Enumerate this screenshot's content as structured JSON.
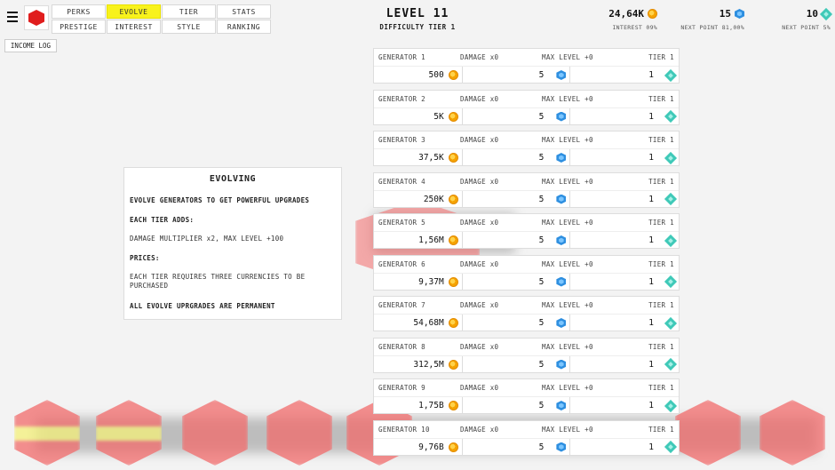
{
  "menu": {
    "icon": "hamburger-icon"
  },
  "logo": {
    "icon": "red-cube-icon",
    "color": "#e01d1d"
  },
  "tabs": [
    {
      "label": "PERKS",
      "active": false
    },
    {
      "label": "EVOLVE",
      "active": true
    },
    {
      "label": "TIER",
      "active": false
    },
    {
      "label": "STATS",
      "active": false
    },
    {
      "label": "PRESTIGE",
      "active": false
    },
    {
      "label": "INTEREST",
      "active": false
    },
    {
      "label": "STYLE",
      "active": false
    },
    {
      "label": "RANKING",
      "active": false
    }
  ],
  "income_log_label": "INCOME LOG",
  "header": {
    "level": "LEVEL 11",
    "difficulty": "DIFFICULTY TIER 1"
  },
  "stats": {
    "coins": {
      "value": "24,64K",
      "sub": "INTEREST 09%",
      "icon": "coin-icon"
    },
    "gems": {
      "value": "15",
      "sub": "NEXT POINT 81,00%",
      "icon": "gem-icon"
    },
    "diamonds": {
      "value": "10",
      "sub": "NEXT POINT 5%",
      "icon": "diamond-icon"
    }
  },
  "info": {
    "title": "EVOLVING",
    "line1": "EVOLVE GENERATORS TO GET POWERFUL UPGRADES",
    "line2": "EACH TIER ADDS:",
    "line3": "DAMAGE MULTIPLIER x2, MAX LEVEL +100",
    "line4": "PRICES:",
    "line5": "EACH TIER REQUIRES THREE CURRENCIES TO BE PURCHASED",
    "line6": "ALL EVOLVE UPRGRADES ARE PERMANENT"
  },
  "generators": [
    {
      "name": "GENERATOR 1",
      "damage": "DAMAGE x0",
      "max": "MAX LEVEL +0",
      "tier": "TIER 1",
      "coin_price": "500",
      "gem_price": "5",
      "diamond_price": "1"
    },
    {
      "name": "GENERATOR 2",
      "damage": "DAMAGE x0",
      "max": "MAX LEVEL +0",
      "tier": "TIER 1",
      "coin_price": "5K",
      "gem_price": "5",
      "diamond_price": "1"
    },
    {
      "name": "GENERATOR 3",
      "damage": "DAMAGE x0",
      "max": "MAX LEVEL +0",
      "tier": "TIER 1",
      "coin_price": "37,5K",
      "gem_price": "5",
      "diamond_price": "1"
    },
    {
      "name": "GENERATOR 4",
      "damage": "DAMAGE x0",
      "max": "MAX LEVEL +0",
      "tier": "TIER 1",
      "coin_price": "250K",
      "gem_price": "5",
      "diamond_price": "1"
    },
    {
      "name": "GENERATOR 5",
      "damage": "DAMAGE x0",
      "max": "MAX LEVEL +0",
      "tier": "TIER 1",
      "coin_price": "1,56M",
      "gem_price": "5",
      "diamond_price": "1"
    },
    {
      "name": "GENERATOR 6",
      "damage": "DAMAGE x0",
      "max": "MAX LEVEL +0",
      "tier": "TIER 1",
      "coin_price": "9,37M",
      "gem_price": "5",
      "diamond_price": "1"
    },
    {
      "name": "GENERATOR 7",
      "damage": "DAMAGE x0",
      "max": "MAX LEVEL +0",
      "tier": "TIER 1",
      "coin_price": "54,68M",
      "gem_price": "5",
      "diamond_price": "1"
    },
    {
      "name": "GENERATOR 8",
      "damage": "DAMAGE x0",
      "max": "MAX LEVEL +0",
      "tier": "TIER 1",
      "coin_price": "312,5M",
      "gem_price": "5",
      "diamond_price": "1"
    },
    {
      "name": "GENERATOR 9",
      "damage": "DAMAGE x0",
      "max": "MAX LEVEL +0",
      "tier": "TIER 1",
      "coin_price": "1,75B",
      "gem_price": "5",
      "diamond_price": "1"
    },
    {
      "name": "GENERATOR 10",
      "damage": "DAMAGE x0",
      "max": "MAX LEVEL +0",
      "tier": "TIER 1",
      "coin_price": "9,76B",
      "gem_price": "5",
      "diamond_price": "1"
    }
  ],
  "colors": {
    "active_tab": "#f8f21c",
    "enemy": "#f26b6b",
    "coin": "#f5a300",
    "gem": "#2e8fe0",
    "diamond": "#3fc9b8"
  }
}
